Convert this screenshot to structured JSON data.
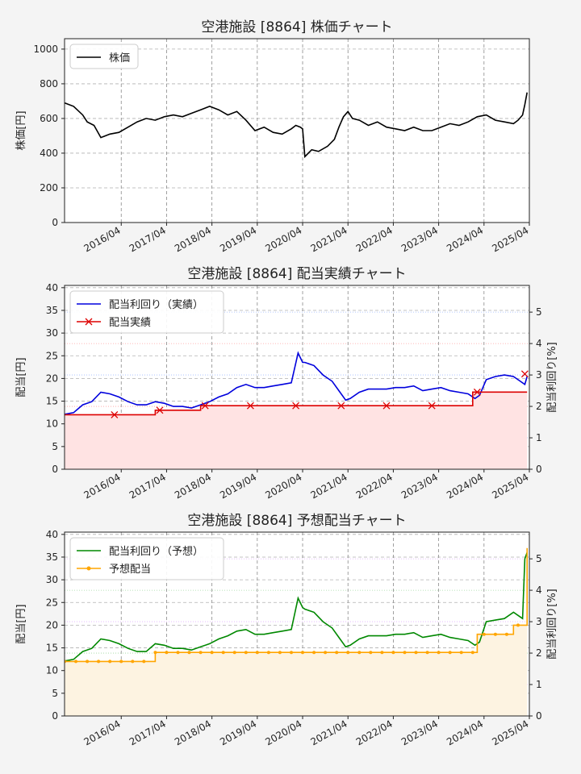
{
  "charts": [
    {
      "title": "空港施設 [8864]  株価チャート",
      "ylabel": "株価[円]",
      "legend": [
        "株価"
      ]
    },
    {
      "title": "空港施設 [8864]  配当実績チャート",
      "ylabel": "配当[円]",
      "ylabel_right": "配当利回り[%]",
      "legend": [
        "配当利回り（実績）",
        "配当実績"
      ]
    },
    {
      "title": "空港施設 [8864]  予想配当チャート",
      "ylabel": "配当[円]",
      "ylabel_right": "配当利回り[%]",
      "legend": [
        "配当利回り（予想）",
        "予想配当"
      ]
    }
  ],
  "chart_data": [
    {
      "type": "line",
      "title": "空港施設 [8864]  株価チャート",
      "ylabel": "株価[円]",
      "ylim": [
        0,
        1060
      ],
      "yticks": [
        0,
        200,
        400,
        600,
        800,
        1000
      ],
      "xlim": [
        2015.0,
        2025.25
      ],
      "xticks": [
        "2016/04",
        "2017/04",
        "2018/04",
        "2019/04",
        "2020/04",
        "2021/04",
        "2022/04",
        "2023/04",
        "2024/04",
        "2025/04"
      ],
      "grid": true,
      "legend_position": "top-left",
      "colors": {
        "price": "#000000"
      },
      "series": [
        {
          "name": "株価",
          "x": [
            2015.0,
            2015.2,
            2015.4,
            2015.5,
            2015.65,
            2015.8,
            2016.0,
            2016.2,
            2016.4,
            2016.6,
            2016.8,
            2017.0,
            2017.2,
            2017.4,
            2017.6,
            2017.8,
            2018.0,
            2018.2,
            2018.4,
            2018.6,
            2018.8,
            2019.0,
            2019.2,
            2019.4,
            2019.6,
            2019.8,
            2020.0,
            2020.1,
            2020.2,
            2020.25,
            2020.3,
            2020.45,
            2020.6,
            2020.8,
            2020.95,
            2021.05,
            2021.15,
            2021.25,
            2021.35,
            2021.5,
            2021.7,
            2021.9,
            2022.1,
            2022.3,
            2022.5,
            2022.7,
            2022.9,
            2023.1,
            2023.3,
            2023.5,
            2023.7,
            2023.9,
            2024.1,
            2024.3,
            2024.5,
            2024.7,
            2024.9,
            2025.0,
            2025.1,
            2025.15,
            2025.2
          ],
          "y": [
            690,
            670,
            620,
            580,
            560,
            490,
            510,
            520,
            550,
            580,
            600,
            590,
            610,
            620,
            610,
            630,
            650,
            670,
            650,
            620,
            640,
            590,
            530,
            550,
            520,
            510,
            540,
            560,
            550,
            540,
            380,
            420,
            410,
            440,
            480,
            550,
            610,
            640,
            600,
            590,
            560,
            580,
            550,
            540,
            530,
            550,
            530,
            530,
            550,
            570,
            560,
            580,
            610,
            620,
            590,
            580,
            570,
            590,
            620,
            680,
            750
          ]
        }
      ]
    },
    {
      "type": "line",
      "title": "空港施設 [8864]  配当実績チャート",
      "ylabel": "配当[円]",
      "ylabel_right": "配当利回り[%]",
      "ylim": [
        0,
        40.5
      ],
      "ylim_right": [
        0,
        5.85
      ],
      "yticks": [
        0,
        5,
        10,
        15,
        20,
        25,
        30,
        35,
        40
      ],
      "yticks_right": [
        0,
        1,
        2,
        3,
        4,
        5
      ],
      "xlim": [
        2015.0,
        2025.25
      ],
      "xticks": [
        "2016/04",
        "2017/04",
        "2018/04",
        "2019/04",
        "2020/04",
        "2021/04",
        "2022/04",
        "2023/04",
        "2024/04",
        "2025/04"
      ],
      "grid": true,
      "legend_position": "top-left",
      "colors": {
        "yield": "#0000dd",
        "dividend": "#dd0000",
        "fill": "#ffe3e3"
      },
      "series": [
        {
          "name": "配当利回り（実績）",
          "axis": "right",
          "x": [
            2015.0,
            2015.2,
            2015.4,
            2015.6,
            2015.8,
            2016.0,
            2016.2,
            2016.4,
            2016.6,
            2016.8,
            2017.0,
            2017.2,
            2017.4,
            2017.6,
            2017.8,
            2018.0,
            2018.2,
            2018.4,
            2018.6,
            2018.8,
            2019.0,
            2019.2,
            2019.4,
            2019.6,
            2019.8,
            2020.0,
            2020.15,
            2020.25,
            2020.3,
            2020.5,
            2020.7,
            2020.9,
            2021.05,
            2021.2,
            2021.3,
            2021.5,
            2021.7,
            2021.9,
            2022.1,
            2022.3,
            2022.5,
            2022.7,
            2022.9,
            2023.1,
            2023.3,
            2023.5,
            2023.7,
            2023.9,
            2024.05,
            2024.15,
            2024.3,
            2024.5,
            2024.7,
            2024.9,
            2025.05,
            2025.15,
            2025.2
          ],
          "y": [
            1.75,
            1.8,
            2.05,
            2.15,
            2.45,
            2.4,
            2.3,
            2.15,
            2.05,
            2.05,
            2.15,
            2.1,
            2.0,
            2.0,
            1.95,
            2.05,
            2.15,
            2.3,
            2.4,
            2.6,
            2.7,
            2.6,
            2.6,
            2.65,
            2.7,
            2.75,
            3.7,
            3.4,
            3.4,
            3.3,
            3.0,
            2.8,
            2.5,
            2.2,
            2.25,
            2.45,
            2.55,
            2.55,
            2.55,
            2.6,
            2.6,
            2.65,
            2.5,
            2.55,
            2.6,
            2.5,
            2.45,
            2.4,
            2.25,
            2.35,
            2.85,
            2.95,
            3.0,
            2.95,
            2.8,
            2.7,
            2.95
          ]
        },
        {
          "name": "配当実績",
          "axis": "left",
          "x": [
            2015.0,
            2016.0,
            2017.0,
            2018.0,
            2019.0,
            2020.0,
            2021.0,
            2022.0,
            2023.0,
            2024.0,
            2025.2
          ],
          "y": [
            12,
            12,
            13,
            14,
            14,
            14,
            14,
            14,
            14,
            17,
            17
          ],
          "markers_x": [
            2016.1,
            2017.1,
            2018.1,
            2019.1,
            2020.1,
            2021.1,
            2022.1,
            2023.1,
            2024.1,
            2025.15
          ],
          "markers_y": [
            12,
            13,
            14,
            14,
            14,
            14,
            14,
            14,
            17,
            21
          ]
        }
      ]
    },
    {
      "type": "line",
      "title": "空港施設 [8864]  予想配当チャート",
      "ylabel": "配当[円]",
      "ylabel_right": "配当利回り[%]",
      "ylim": [
        0,
        40.5
      ],
      "ylim_right": [
        0,
        5.85
      ],
      "yticks": [
        0,
        5,
        10,
        15,
        20,
        25,
        30,
        35,
        40
      ],
      "yticks_right": [
        0,
        1,
        2,
        3,
        4,
        5
      ],
      "xlim": [
        2015.0,
        2025.25
      ],
      "xticks": [
        "2016/04",
        "2017/04",
        "2018/04",
        "2019/04",
        "2020/04",
        "2021/04",
        "2022/04",
        "2023/04",
        "2024/04",
        "2025/04"
      ],
      "grid": true,
      "legend_position": "top-left",
      "colors": {
        "yield": "#008800",
        "dividend": "#ffa500",
        "fill": "#fdf3e1"
      },
      "series": [
        {
          "name": "配当利回り（予想）",
          "axis": "right",
          "x": [
            2015.0,
            2015.2,
            2015.4,
            2015.6,
            2015.8,
            2016.0,
            2016.2,
            2016.4,
            2016.6,
            2016.8,
            2017.0,
            2017.2,
            2017.4,
            2017.6,
            2017.8,
            2018.0,
            2018.2,
            2018.4,
            2018.6,
            2018.8,
            2019.0,
            2019.2,
            2019.4,
            2019.6,
            2019.8,
            2020.0,
            2020.15,
            2020.25,
            2020.3,
            2020.5,
            2020.7,
            2020.9,
            2021.05,
            2021.2,
            2021.3,
            2021.5,
            2021.7,
            2021.9,
            2022.1,
            2022.3,
            2022.5,
            2022.7,
            2022.9,
            2023.1,
            2023.3,
            2023.5,
            2023.7,
            2023.9,
            2024.05,
            2024.15,
            2024.3,
            2024.5,
            2024.7,
            2024.9,
            2025.0,
            2025.1,
            2025.15,
            2025.2
          ],
          "y": [
            1.75,
            1.8,
            2.05,
            2.15,
            2.45,
            2.4,
            2.3,
            2.15,
            2.05,
            2.05,
            2.3,
            2.25,
            2.15,
            2.15,
            2.1,
            2.2,
            2.3,
            2.45,
            2.55,
            2.7,
            2.75,
            2.6,
            2.6,
            2.65,
            2.7,
            2.75,
            3.75,
            3.45,
            3.4,
            3.3,
            3.0,
            2.8,
            2.5,
            2.2,
            2.25,
            2.45,
            2.55,
            2.55,
            2.55,
            2.6,
            2.6,
            2.65,
            2.5,
            2.55,
            2.6,
            2.5,
            2.45,
            2.4,
            2.25,
            2.35,
            3.0,
            3.05,
            3.1,
            3.3,
            3.2,
            3.1,
            5.0,
            5.2
          ]
        },
        {
          "name": "予想配当",
          "axis": "left",
          "x": [
            2015.0,
            2016.0,
            2017.0,
            2018.0,
            2019.0,
            2020.0,
            2021.0,
            2022.0,
            2023.0,
            2024.0,
            2025.0,
            2025.2
          ],
          "y": [
            12,
            12,
            14,
            14,
            14,
            14,
            14,
            14,
            14,
            18,
            20,
            37
          ],
          "step_x": [
            2015.0,
            2017.0,
            2024.1,
            2024.9,
            2025.2
          ],
          "step_y": [
            12,
            14,
            18,
            20,
            37
          ]
        }
      ]
    }
  ]
}
